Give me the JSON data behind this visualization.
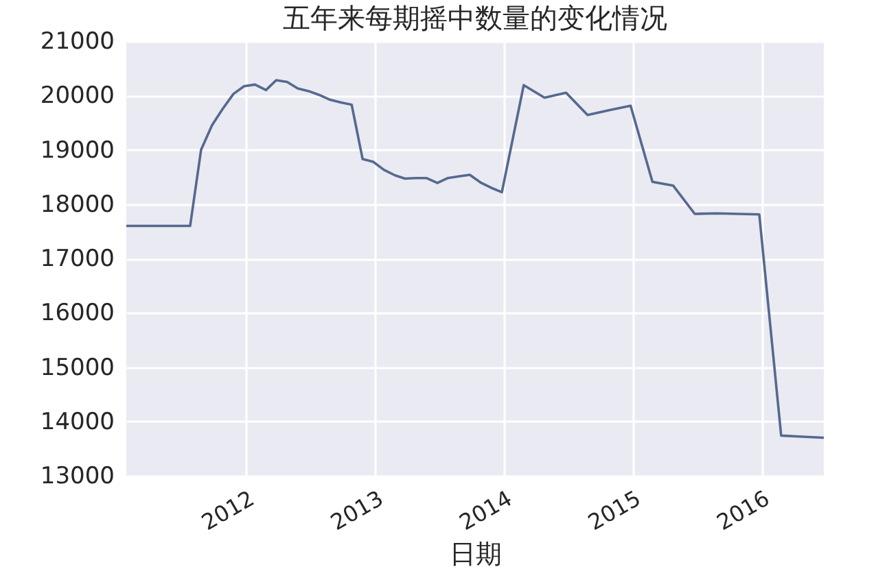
{
  "chart_data": {
    "type": "line",
    "title": "五年来每期摇中数量的变化情况",
    "xlabel": "日期",
    "x": [
      "2011-01-26",
      "2011-02-26",
      "2011-03-26",
      "2011-04-26",
      "2011-05-26",
      "2011-06-26",
      "2011-07-26",
      "2011-08-26",
      "2011-09-26",
      "2011-10-26",
      "2011-11-26",
      "2011-12-26",
      "2012-01-26",
      "2012-02-26",
      "2012-03-26",
      "2012-04-26",
      "2012-05-26",
      "2012-06-26",
      "2012-07-26",
      "2012-08-26",
      "2012-09-26",
      "2012-10-26",
      "2012-11-26",
      "2012-12-26",
      "2013-01-26",
      "2013-02-26",
      "2013-03-26",
      "2013-04-26",
      "2013-05-26",
      "2013-06-26",
      "2013-07-26",
      "2013-08-26",
      "2013-09-26",
      "2013-10-26",
      "2013-11-26",
      "2013-12-26",
      "2014-02-26",
      "2014-04-26",
      "2014-06-26",
      "2014-08-26",
      "2014-10-26",
      "2014-12-26",
      "2015-02-26",
      "2015-04-26",
      "2015-06-26",
      "2015-08-26",
      "2015-10-26",
      "2015-12-26",
      "2016-02-26",
      "2016-04-26",
      "2016-06-26"
    ],
    "values": [
      17600,
      17600,
      17600,
      17600,
      17600,
      17600,
      17600,
      19000,
      19450,
      19750,
      20030,
      20170,
      20200,
      20100,
      20280,
      20250,
      20130,
      20080,
      20010,
      19920,
      19870,
      19830,
      18830,
      18780,
      18630,
      18530,
      18470,
      18480,
      18480,
      18390,
      18480,
      18510,
      18540,
      18400,
      18300,
      18220,
      20190,
      19960,
      20050,
      19640,
      19730,
      19810,
      18410,
      18340,
      17820,
      17830,
      17820,
      17810,
      13740,
      13720,
      13700
    ],
    "color": "#55698f",
    "xlim": [
      "2011-01-26",
      "2016-06-26"
    ],
    "xticks": [
      "2012",
      "2013",
      "2014",
      "2015",
      "2016"
    ],
    "ylim": [
      13000,
      21000
    ],
    "yticks": [
      13000,
      14000,
      15000,
      16000,
      17000,
      18000,
      19000,
      20000,
      21000
    ],
    "grid": true
  }
}
